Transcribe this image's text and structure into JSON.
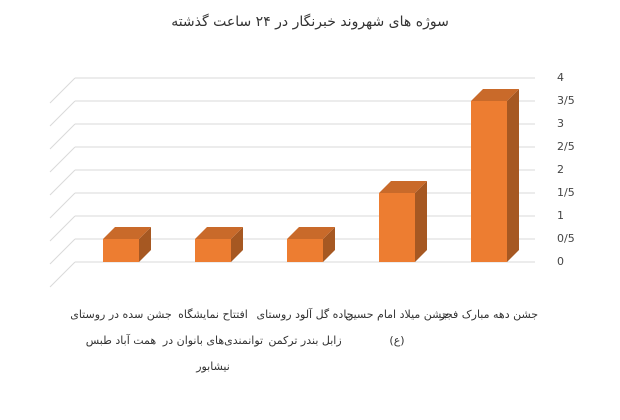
{
  "chart_data": {
    "type": "bar",
    "title": "سوژه های شهروند خبرنگار در ۲۴ ساعت گذشته",
    "categories": [
      "جشن دهه مبارک فجر",
      "جشن میلاد امام حسین (ع)",
      "جاده گل آلود روستای زابل بندر ترکمن",
      "افتتاح نمایشگاه توانمندی‌های بانوان در نیشابور",
      "جشن سده در روستای همت آباد طبس"
    ],
    "values": [
      3.5,
      1.5,
      0.5,
      0.5,
      0.5
    ],
    "color": "#ED7D31",
    "ylim": [
      0,
      4
    ],
    "yticks": [
      0,
      {
        "value": 0.5,
        "label": "0/5"
      },
      1,
      {
        "value": 1.5,
        "label": "1/5"
      },
      2,
      {
        "value": 2.5,
        "label": "2/5"
      },
      3,
      {
        "value": 3.5,
        "label": "3/5"
      },
      4
    ],
    "grid": true
  }
}
